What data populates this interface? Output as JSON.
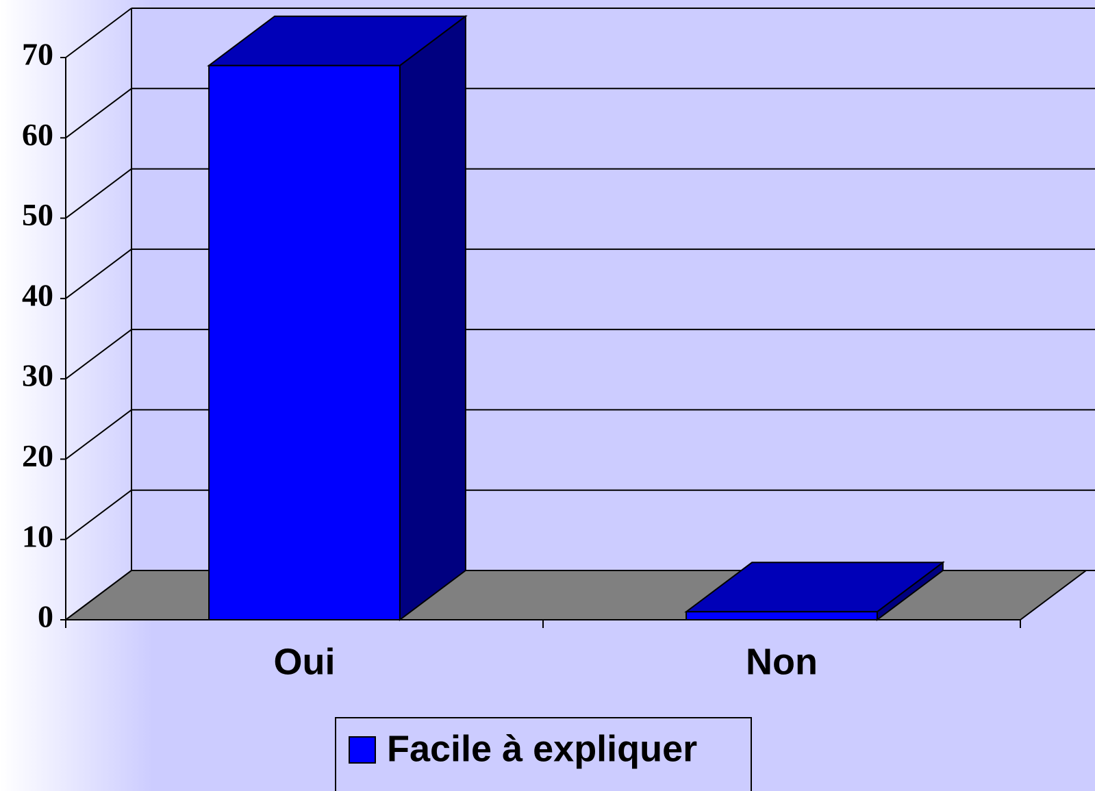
{
  "chart_data": {
    "type": "bar3d",
    "categories": [
      "Oui",
      "Non"
    ],
    "series": [
      {
        "name": "Facile à expliquer",
        "color": "#0000ff",
        "values": [
          69,
          1
        ]
      }
    ],
    "ylim": [
      0,
      70
    ],
    "yticks": [
      0,
      10,
      20,
      30,
      40,
      50,
      60,
      70
    ],
    "grid": true,
    "legend": "bottom"
  }
}
